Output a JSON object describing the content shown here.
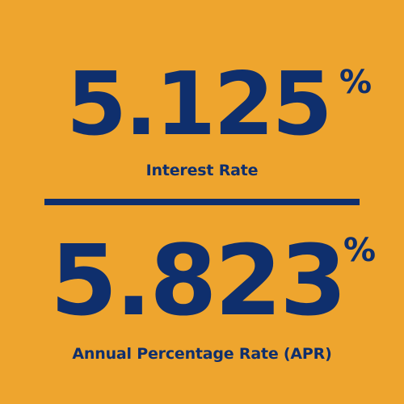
{
  "interest": {
    "value": "5.125",
    "symbol": "%",
    "label": "Interest Rate"
  },
  "apr": {
    "value": "5.823",
    "symbol": "%",
    "label": "Annual Percentage Rate (APR)"
  },
  "colors": {
    "background": "#eea52e",
    "text": "#0f2f6d"
  }
}
